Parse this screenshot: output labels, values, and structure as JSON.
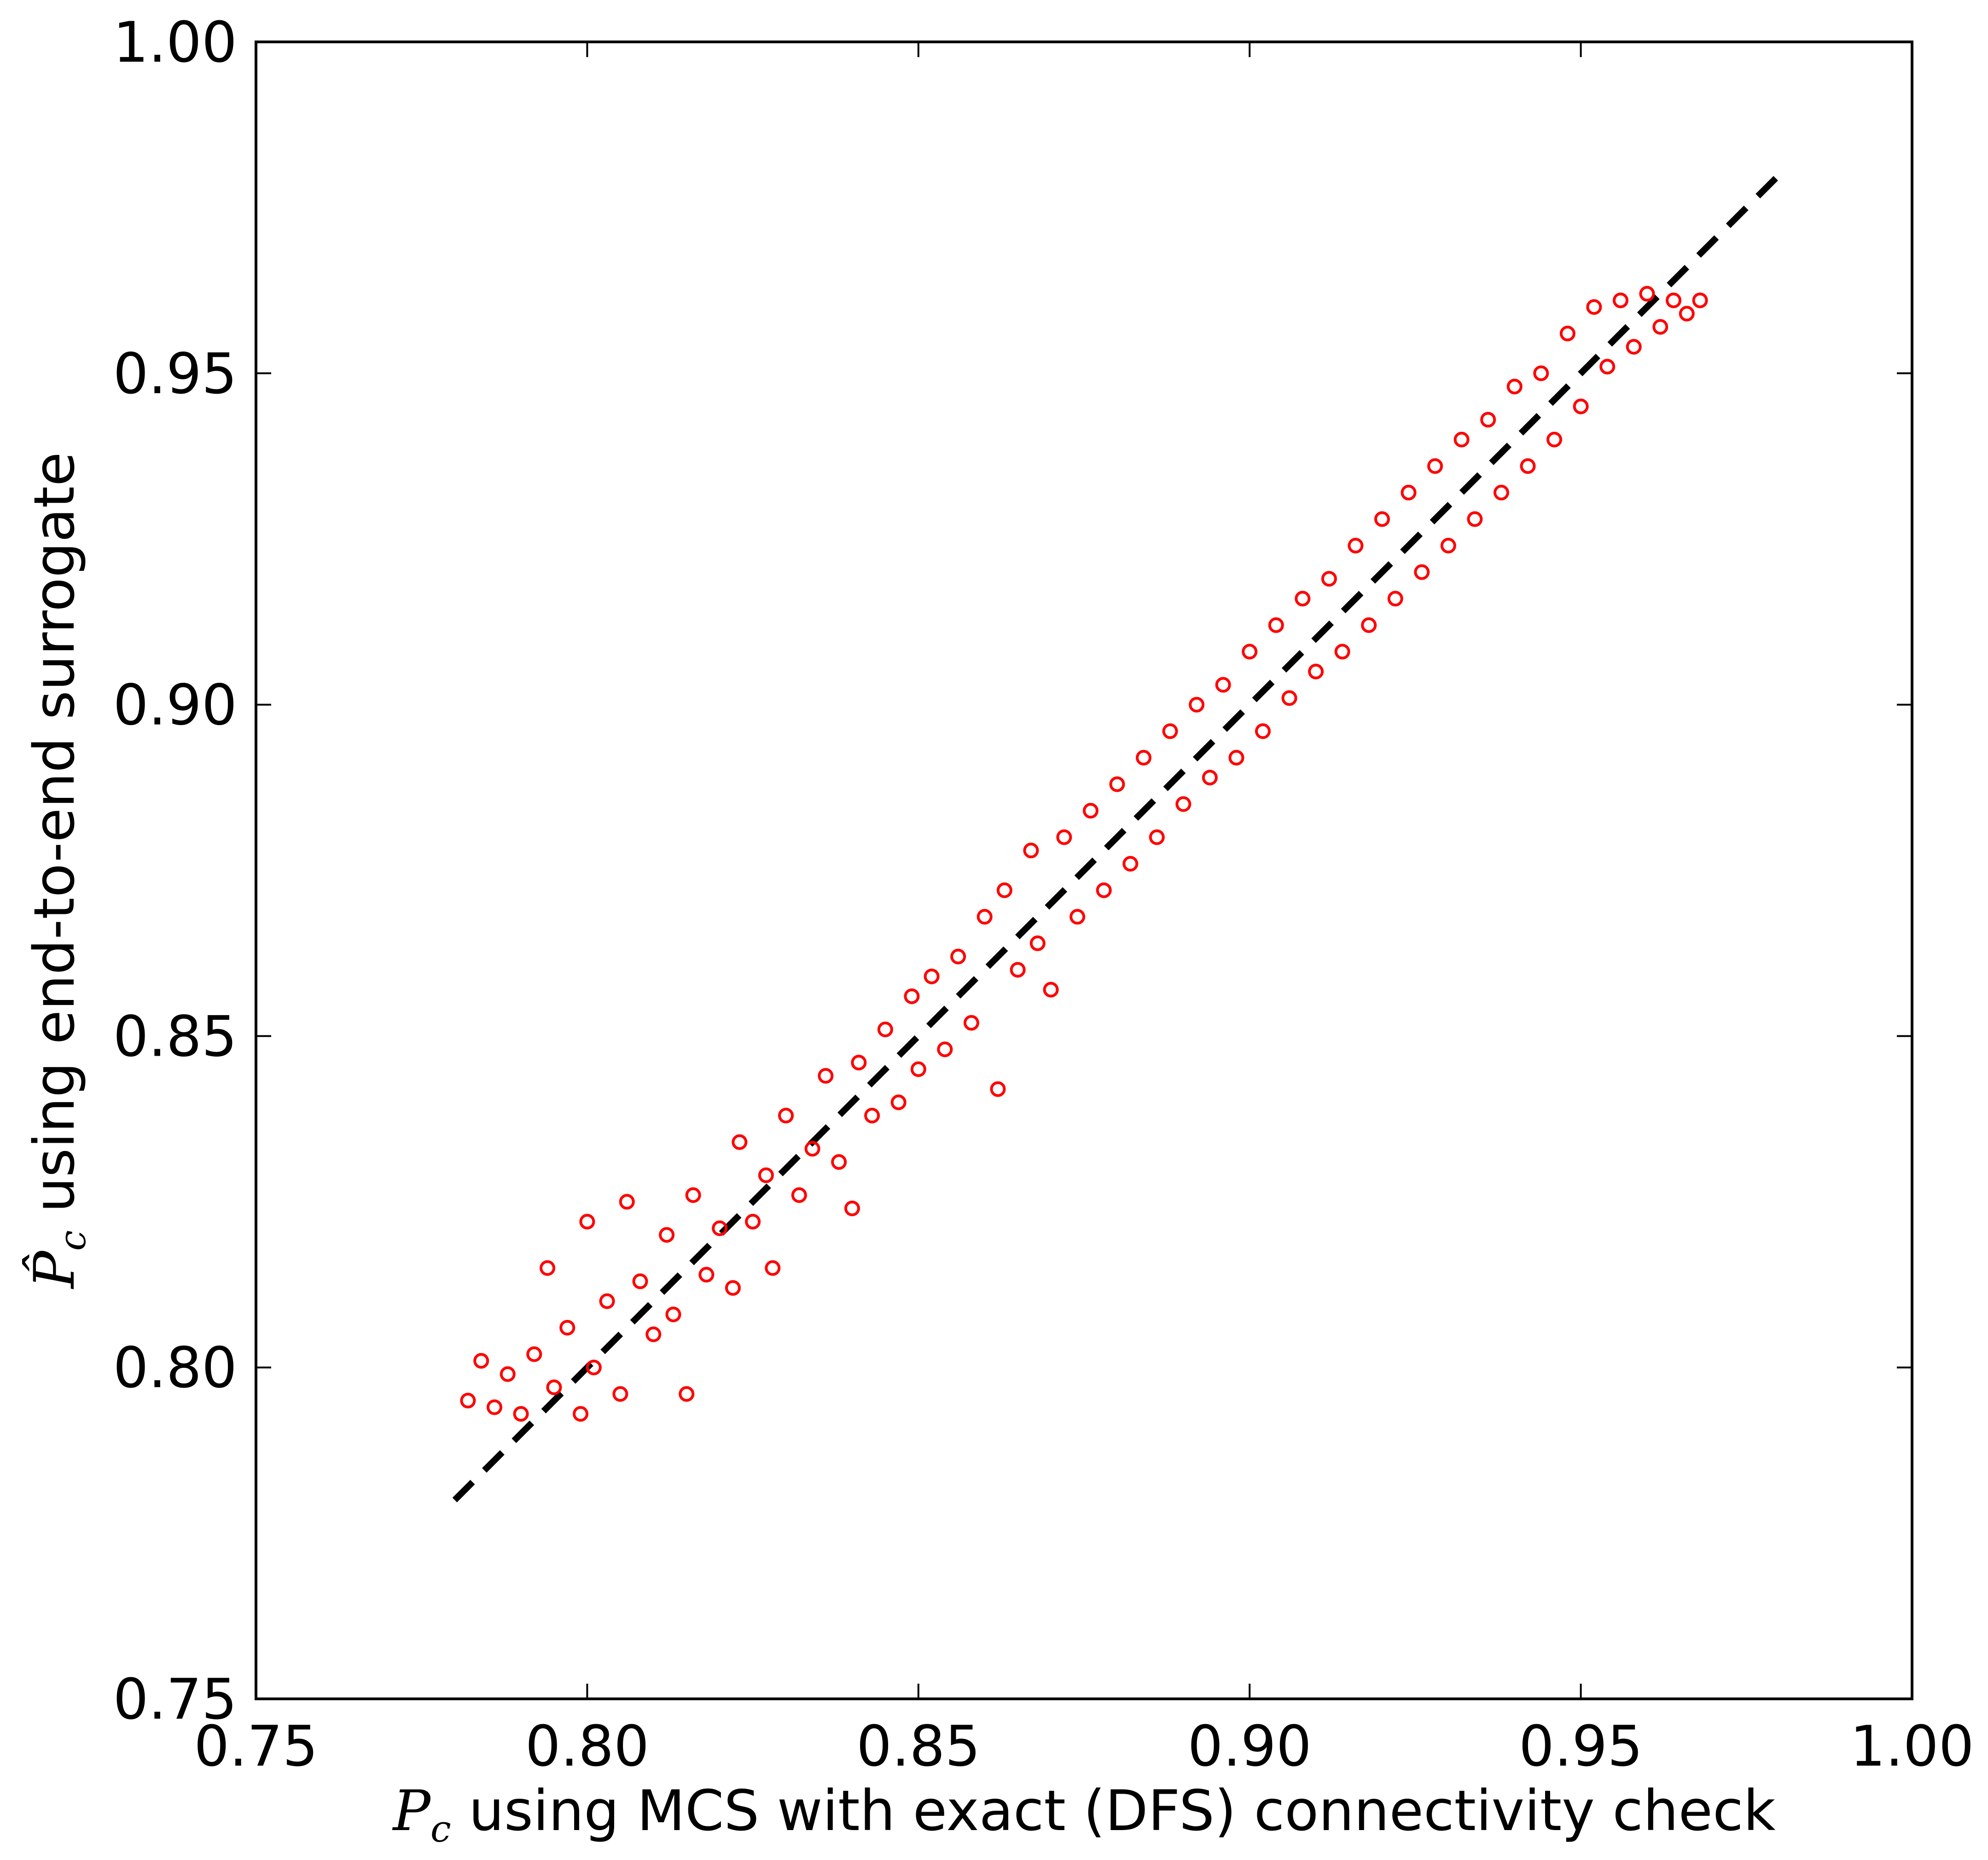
{
  "chart_data": {
    "type": "scatter",
    "xlabel": {
      "symbol": "P",
      "subscript": "c",
      "text": " using MCS with exact (DFS) connectivity check"
    },
    "ylabel": {
      "symbol": "P̂",
      "subscript": "c",
      "text": " using end-to-end surrogate"
    },
    "xlim": [
      0.75,
      1.0
    ],
    "ylim": [
      0.75,
      1.0
    ],
    "xticks": [
      0.75,
      {
        "value": 0.8,
        "label": "0.80"
      },
      0.85,
      {
        "value": 0.9,
        "label": "0.90"
      },
      0.95,
      {
        "value": 1.0,
        "label": "1.00"
      }
    ],
    "yticks": [
      0.75,
      {
        "value": 0.8,
        "label": "0.80"
      },
      0.85,
      {
        "value": 0.9,
        "label": "0.90"
      },
      0.95,
      {
        "value": 1.0,
        "label": "1.00"
      }
    ],
    "color": "#ff0000",
    "x": [
      0.782,
      0.784,
      0.786,
      0.788,
      0.79,
      0.792,
      0.794,
      0.795,
      0.797,
      0.799,
      0.8,
      0.801,
      0.803,
      0.805,
      0.806,
      0.808,
      0.81,
      0.812,
      0.813,
      0.815,
      0.816,
      0.818,
      0.82,
      0.822,
      0.823,
      0.825,
      0.827,
      0.828,
      0.83,
      0.832,
      0.834,
      0.836,
      0.838,
      0.84,
      0.841,
      0.843,
      0.845,
      0.847,
      0.849,
      0.85,
      0.852,
      0.854,
      0.856,
      0.858,
      0.86,
      0.862,
      0.863,
      0.865,
      0.867,
      0.868,
      0.87,
      0.872,
      0.874,
      0.876,
      0.878,
      0.88,
      0.882,
      0.884,
      0.886,
      0.888,
      0.89,
      0.892,
      0.894,
      0.896,
      0.898,
      0.9,
      0.902,
      0.904,
      0.906,
      0.908,
      0.91,
      0.912,
      0.914,
      0.916,
      0.918,
      0.92,
      0.922,
      0.924,
      0.926,
      0.928,
      0.93,
      0.932,
      0.934,
      0.936,
      0.938,
      0.94,
      0.942,
      0.944,
      0.946,
      0.948,
      0.95,
      0.952,
      0.954,
      0.956,
      0.958,
      0.96,
      0.962,
      0.964,
      0.966,
      0.968
    ],
    "y": [
      0.795,
      0.801,
      0.794,
      0.799,
      0.793,
      0.802,
      0.815,
      0.797,
      0.806,
      0.793,
      0.822,
      0.8,
      0.81,
      0.796,
      0.825,
      0.813,
      0.805,
      0.82,
      0.808,
      0.796,
      0.826,
      0.814,
      0.821,
      0.812,
      0.834,
      0.822,
      0.829,
      0.815,
      0.838,
      0.826,
      0.833,
      0.844,
      0.831,
      0.824,
      0.846,
      0.838,
      0.851,
      0.84,
      0.856,
      0.845,
      0.859,
      0.848,
      0.862,
      0.852,
      0.868,
      0.842,
      0.872,
      0.86,
      0.878,
      0.864,
      0.857,
      0.88,
      0.868,
      0.884,
      0.872,
      0.888,
      0.876,
      0.892,
      0.88,
      0.896,
      0.885,
      0.9,
      0.889,
      0.903,
      0.892,
      0.908,
      0.896,
      0.912,
      0.901,
      0.916,
      0.905,
      0.919,
      0.908,
      0.924,
      0.912,
      0.928,
      0.916,
      0.932,
      0.92,
      0.936,
      0.924,
      0.94,
      0.928,
      0.943,
      0.932,
      0.948,
      0.936,
      0.95,
      0.94,
      0.956,
      0.945,
      0.96,
      0.951,
      0.961,
      0.954,
      0.962,
      0.957,
      0.961,
      0.959,
      0.961
    ],
    "reference_line": {
      "x": [
        0.78,
        0.98
      ],
      "y": [
        0.78,
        0.98
      ],
      "color": "#000000"
    }
  }
}
